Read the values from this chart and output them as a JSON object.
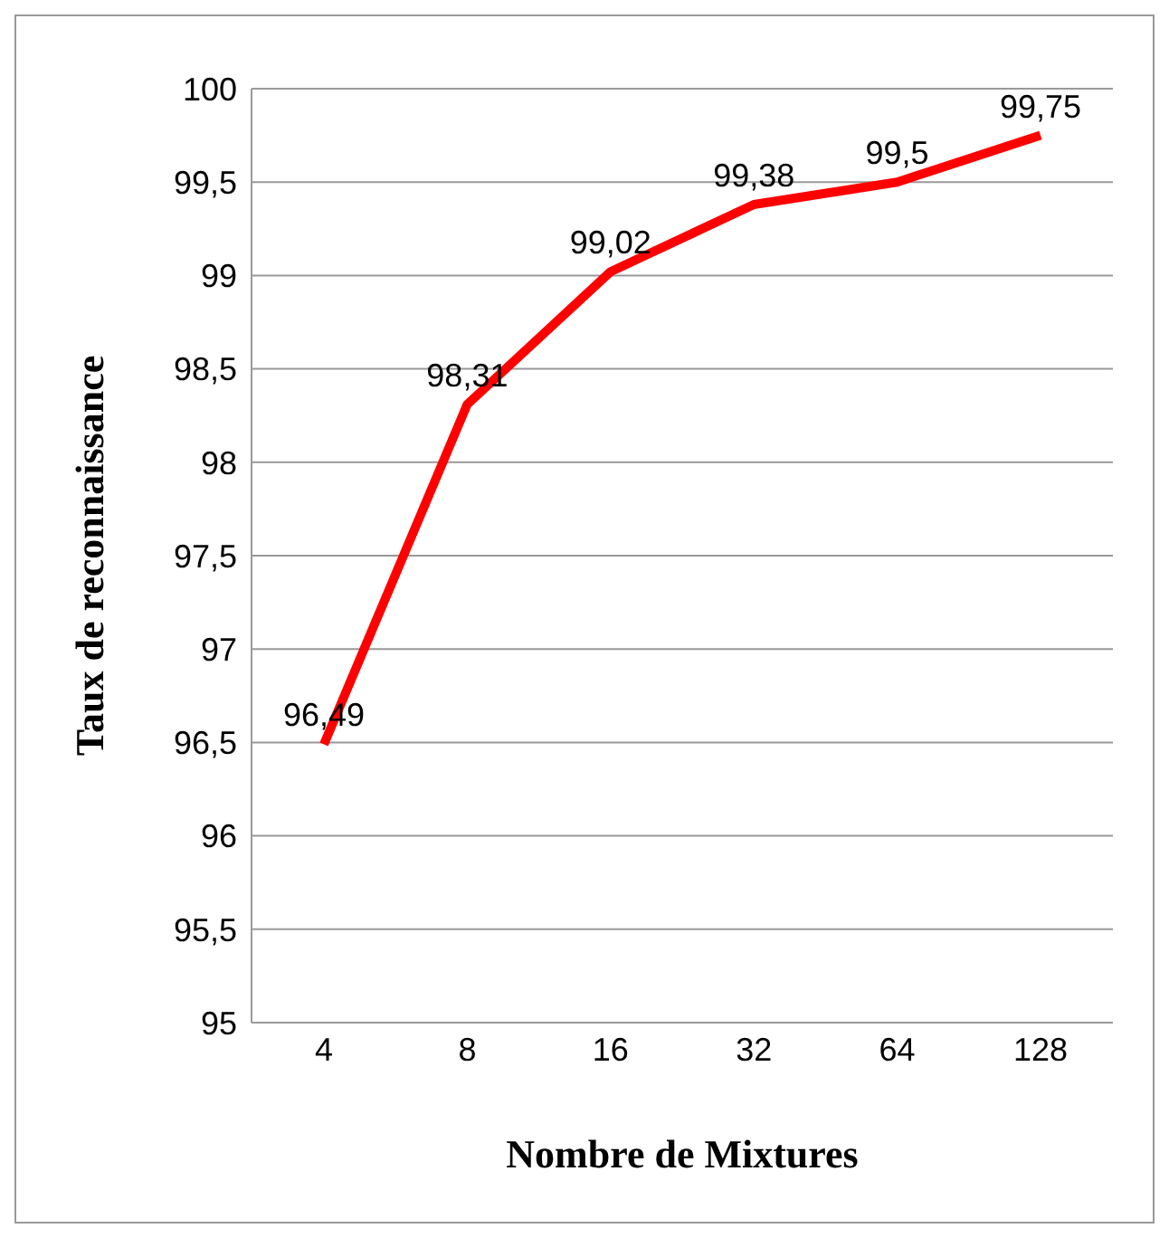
{
  "chart_data": {
    "type": "line",
    "xlabel": "Nombre de Mixtures",
    "ylabel": "Taux de reconnaissance",
    "categories": [
      "4",
      "8",
      "16",
      "32",
      "64",
      "128"
    ],
    "series": [
      {
        "color": "#ff0000",
        "values": [
          96.49,
          98.31,
          99.02,
          99.38,
          99.5,
          99.75
        ],
        "value_labels": [
          "96,49",
          "98,31",
          "99,02",
          "99,38",
          "99,5",
          "99,75"
        ]
      }
    ],
    "ylim": [
      95,
      100
    ],
    "yticks": [
      95,
      {
        "value": 95.5,
        "label": "95,5"
      },
      96,
      {
        "value": 96.5,
        "label": "96,5"
      },
      97,
      {
        "value": 97.5,
        "label": "97,5"
      },
      98,
      {
        "value": 98.5,
        "label": "98,5"
      },
      99,
      {
        "value": 99.5,
        "label": "99,5"
      },
      100
    ],
    "grid": "y",
    "marker": "none",
    "line_style": "solid",
    "legend": false
  }
}
